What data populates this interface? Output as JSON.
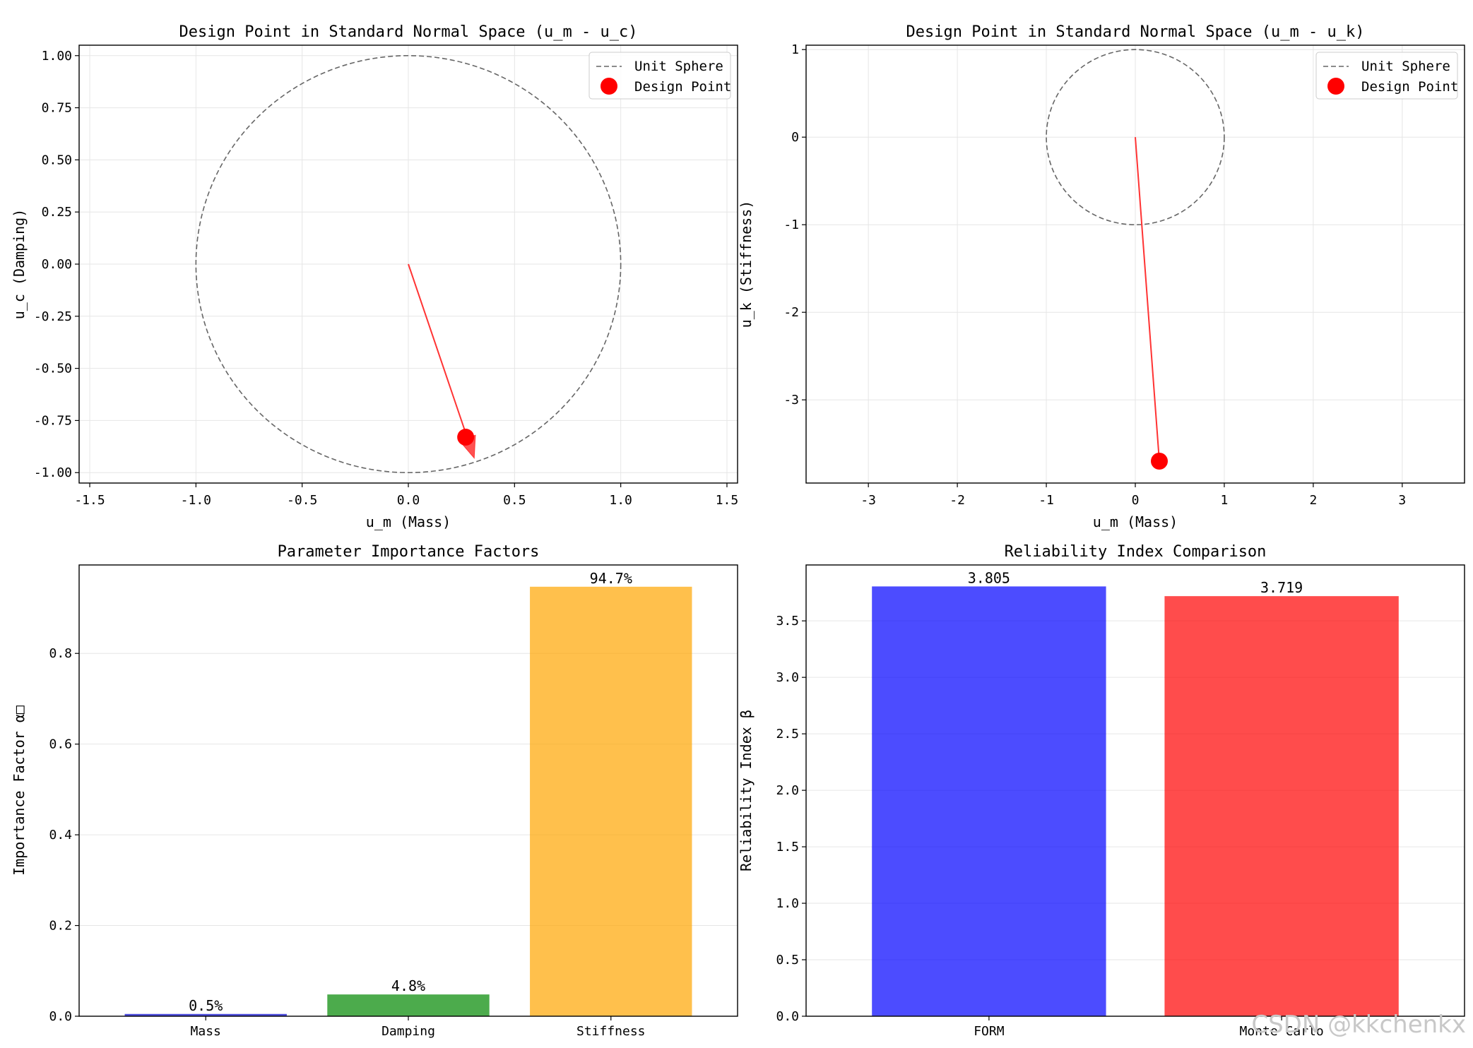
{
  "chart_data": [
    {
      "type": "scatter",
      "title": "Design Point in Standard Normal Space (u_m - u_c)",
      "xlabel": "u_m (Mass)",
      "ylabel": "u_c (Damping)",
      "xlim": [
        -1.55,
        1.55
      ],
      "ylim": [
        -1.05,
        1.05
      ],
      "xticks": [
        -1.5,
        -1.0,
        -0.5,
        0.0,
        0.5,
        1.0,
        1.5
      ],
      "xtick_labels": [
        "-1.5",
        "-1.0",
        "-0.5",
        "0.0",
        "0.5",
        "1.0",
        "1.5"
      ],
      "yticks": [
        1.0,
        0.75,
        0.5,
        0.25,
        0.0,
        -0.25,
        -0.5,
        -0.75,
        -1.0
      ],
      "ytick_labels": [
        "1.00",
        "0.75",
        "0.50",
        "0.25",
        "0.00",
        "-0.25",
        "-0.50",
        "-0.75",
        "-1.00"
      ],
      "grid": true,
      "legend_position": "top-right",
      "legend": [
        "Unit Sphere",
        "Design Point"
      ],
      "circle": {
        "center": [
          0,
          0
        ],
        "radius": 1.0,
        "color": "#666666"
      },
      "design_point": {
        "x": 0.27,
        "y": -0.83,
        "color": "#ff0000"
      },
      "arrow": {
        "from": [
          0,
          0
        ],
        "to": [
          0.31,
          -0.93
        ],
        "color": "#ff3333"
      }
    },
    {
      "type": "scatter",
      "title": "Design Point in Standard Normal Space (u_m - u_k)",
      "xlabel": "u_m (Mass)",
      "ylabel": "u_k (Stiffness)",
      "xlim": [
        -3.7,
        3.7
      ],
      "ylim": [
        -3.95,
        1.05
      ],
      "xticks": [
        -3,
        -2,
        -1,
        0,
        1,
        2,
        3
      ],
      "xtick_labels": [
        "-3",
        "-2",
        "-1",
        "0",
        "1",
        "2",
        "3"
      ],
      "yticks": [
        1,
        0,
        -1,
        -2,
        -3
      ],
      "ytick_labels": [
        "1",
        "0",
        "-1",
        "-2",
        "-3"
      ],
      "grid": true,
      "legend_position": "top-right",
      "legend": [
        "Unit Sphere",
        "Design Point"
      ],
      "circle": {
        "center": [
          0,
          0
        ],
        "radius": 1.0,
        "color": "#666666"
      },
      "design_point": {
        "x": 0.27,
        "y": -3.7,
        "color": "#ff0000"
      },
      "arrow": {
        "from": [
          0,
          0
        ],
        "to": [
          0.27,
          -3.7
        ],
        "color": "#ff3333"
      }
    },
    {
      "type": "bar",
      "title": "Parameter Importance Factors",
      "xlabel": "",
      "ylabel": "Importance Factor α□",
      "categories": [
        "Mass",
        "Damping",
        "Stiffness"
      ],
      "values": [
        0.005,
        0.048,
        0.947
      ],
      "data_labels": [
        "0.5%",
        "4.8%",
        "94.7%"
      ],
      "colors": [
        "#0000cc",
        "#008800",
        "#ffa500"
      ],
      "ylim": [
        0,
        0.995
      ],
      "yticks": [
        0.0,
        0.2,
        0.4,
        0.6,
        0.8
      ],
      "ytick_labels": [
        "0.0",
        "0.2",
        "0.4",
        "0.6",
        "0.8"
      ],
      "grid": true
    },
    {
      "type": "bar",
      "title": "Reliability Index Comparison",
      "xlabel": "",
      "ylabel": "Reliability Index β",
      "categories": [
        "FORM",
        "Monte Carlo"
      ],
      "values": [
        3.805,
        3.719
      ],
      "data_labels": [
        "3.805",
        "3.719"
      ],
      "colors": [
        "#0000ff",
        "#ff0000"
      ],
      "ylim": [
        0,
        3.995
      ],
      "yticks": [
        0.0,
        0.5,
        1.0,
        1.5,
        2.0,
        2.5,
        3.0,
        3.5
      ],
      "ytick_labels": [
        "0.0",
        "0.5",
        "1.0",
        "1.5",
        "2.0",
        "2.5",
        "3.0",
        "3.5"
      ],
      "grid": true
    }
  ],
  "watermark": "CSDN @kkchenkx"
}
